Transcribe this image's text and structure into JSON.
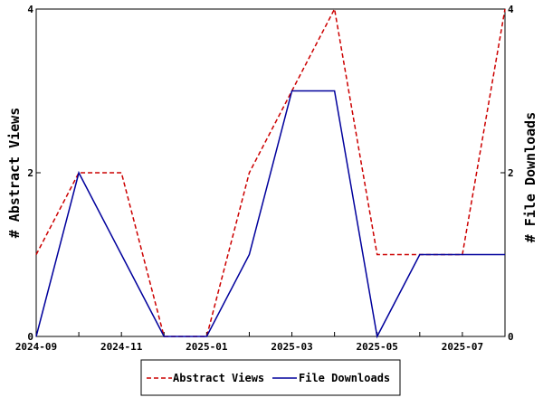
{
  "chart_data": {
    "type": "line",
    "x": [
      "2024-09",
      "2024-10",
      "2024-11",
      "2024-12",
      "2025-01",
      "2025-02",
      "2025-03",
      "2025-04",
      "2025-05",
      "2025-06",
      "2025-07",
      "2025-08"
    ],
    "x_tick_labels": [
      "2024-09",
      "2024-11",
      "2025-01",
      "2025-03",
      "2025-05",
      "2025-07"
    ],
    "series": [
      {
        "name": "Abstract Views",
        "axis": "left",
        "color": "#cc0000",
        "style": "dashed",
        "values": [
          1,
          2,
          2,
          0,
          0,
          2,
          3,
          4,
          1,
          1,
          1,
          4
        ]
      },
      {
        "name": "File Downloads",
        "axis": "right",
        "color": "#00009c",
        "style": "solid",
        "values": [
          0,
          2,
          1,
          0,
          0,
          1,
          3,
          3,
          0,
          1,
          1,
          1
        ]
      }
    ],
    "ylabel": "# Abstract Views",
    "ylabel_right": "# File Downloads",
    "ylim": [
      0,
      4
    ],
    "y_ticks": [
      0,
      2,
      4
    ],
    "grid": false,
    "legend_position": "bottom"
  }
}
